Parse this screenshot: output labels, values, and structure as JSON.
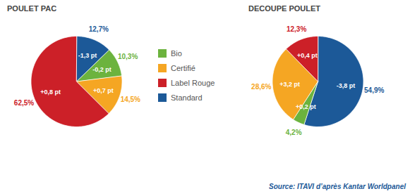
{
  "chart_data": [
    {
      "type": "pie",
      "title": "POULET PAC",
      "categories": [
        "Standard",
        "Bio",
        "Certifié",
        "Label Rouge"
      ],
      "values": [
        12.7,
        10.3,
        14.5,
        62.5
      ],
      "value_labels": [
        "12,7%",
        "10,3%",
        "14,5%",
        "62,5%"
      ],
      "data_labels": true,
      "colors": [
        "#1c5998",
        "#6cb33e",
        "#f5a623",
        "#cc2028"
      ],
      "changes": [
        -1.3,
        -0.2,
        0.7,
        0.8
      ],
      "change_labels": [
        "-1,3 pt",
        "-0,2 pt",
        "+0,7 pt",
        "+0,8 pt"
      ]
    },
    {
      "type": "pie",
      "title": "DECOUPE POULET",
      "categories": [
        "Standard",
        "Bio",
        "Certifié",
        "Label Rouge"
      ],
      "values": [
        54.9,
        4.2,
        28.6,
        12.3
      ],
      "value_labels": [
        "54,9%",
        "4,2%",
        "28,6%",
        "12,3%"
      ],
      "data_labels": true,
      "colors": [
        "#1c5998",
        "#6cb33e",
        "#f5a623",
        "#cc2028"
      ],
      "changes": [
        -3.8,
        0.2,
        3.2,
        0.4
      ],
      "change_labels": [
        "-3,8 pt",
        "+0,2 pt",
        "+3,2 pt",
        "+0,4 pt"
      ]
    }
  ],
  "legend_entries": [
    {
      "name": "Bio",
      "color": "#6cb33e"
    },
    {
      "name": "Certifié",
      "color": "#f5a623"
    },
    {
      "name": "Label Rouge",
      "color": "#cc2028"
    },
    {
      "name": "Standard",
      "color": "#1c5998"
    }
  ],
  "annotations": [
    "Source: ITAVI d’après Kantar Worldpanel"
  ]
}
